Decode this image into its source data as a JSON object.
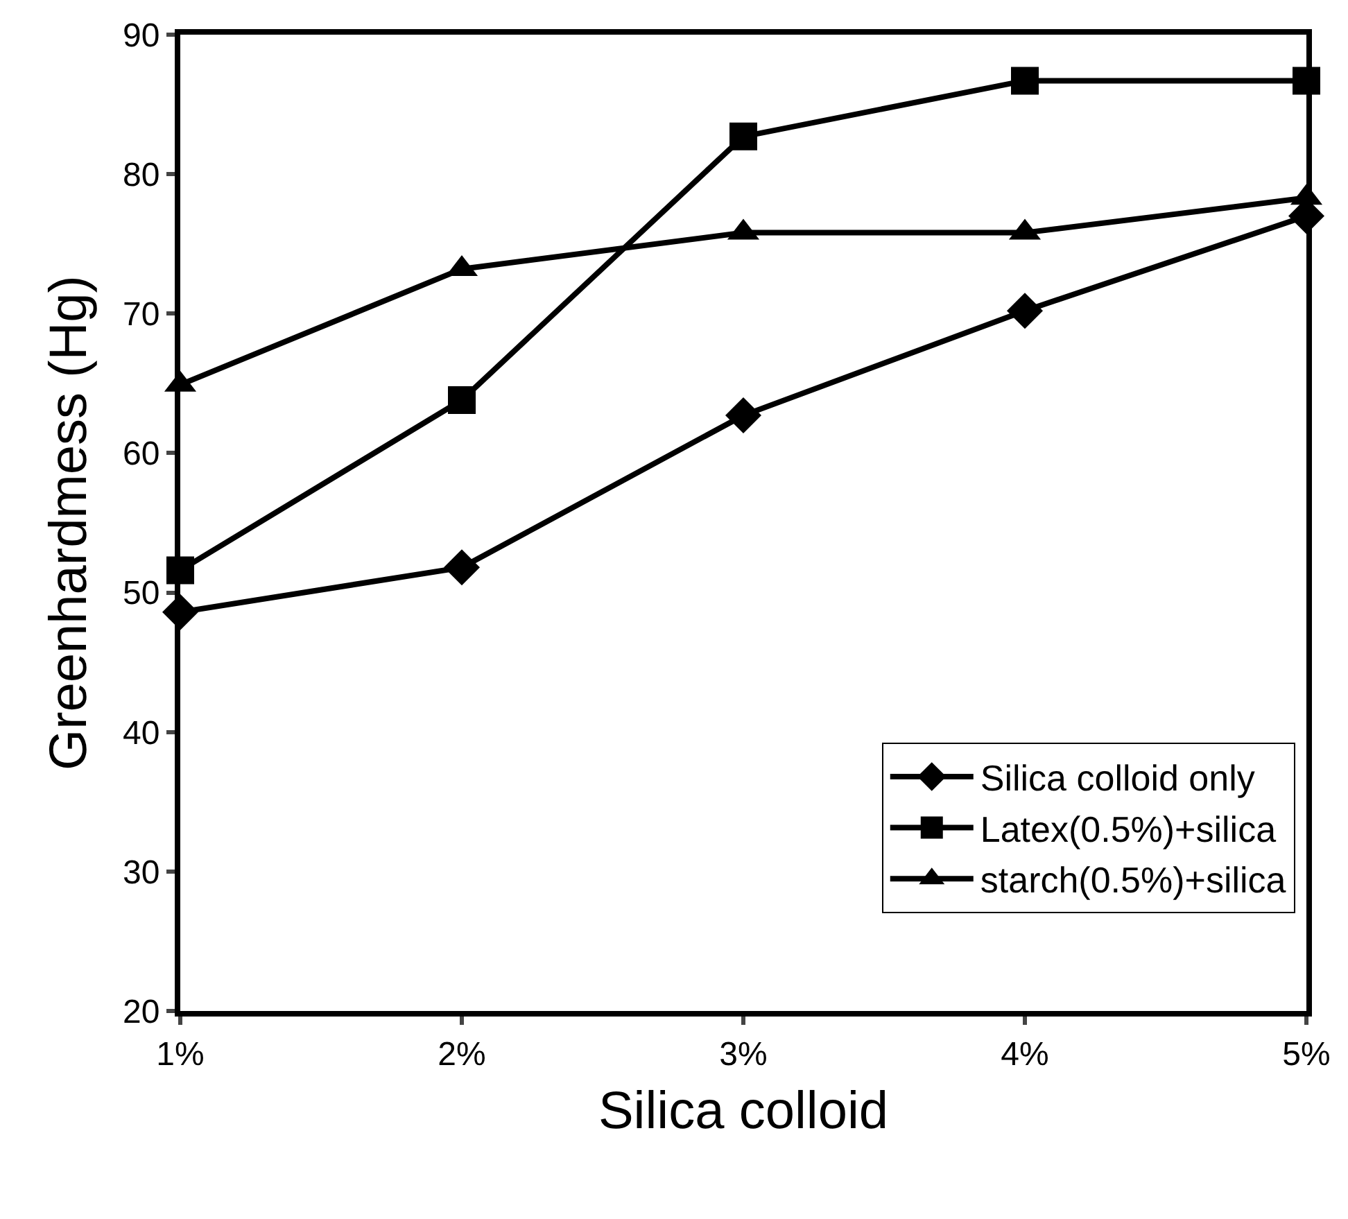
{
  "chart_data": {
    "type": "line",
    "xlabel": "Silica colloid",
    "ylabel": "Greenhardmess (Hg)",
    "categories": [
      "1%",
      "2%",
      "3%",
      "4%",
      "5%"
    ],
    "series": [
      {
        "name": "Silica colloid only",
        "color": "#000000",
        "marker": "diamond",
        "values": [
          48.6,
          51.8,
          62.7,
          70.2,
          77.0
        ]
      },
      {
        "name": "Latex(0.5%)+silica",
        "color": "#000000",
        "marker": "square",
        "values": [
          51.6,
          63.8,
          82.7,
          86.7,
          86.7
        ]
      },
      {
        "name": "starch(0.5%)+silica",
        "color": "#000000",
        "marker": "triangle",
        "values": [
          64.9,
          73.2,
          75.8,
          75.8,
          78.3
        ]
      }
    ],
    "ylim": [
      20,
      90
    ],
    "yticks": [
      20,
      30,
      40,
      50,
      60,
      70,
      80,
      90
    ],
    "legend": "bottom right",
    "line_style": "solid"
  }
}
